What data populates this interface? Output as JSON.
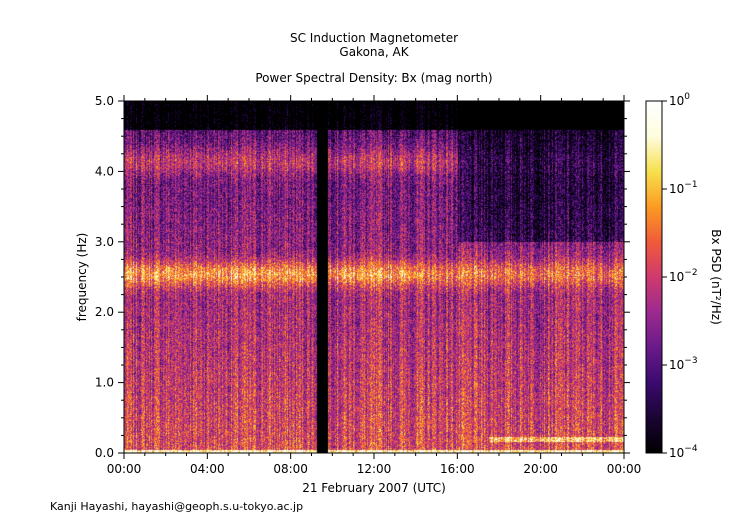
{
  "chart_data": {
    "type": "heatmap",
    "title_lines": [
      "SC Induction Magnetometer",
      "Gakona, AK"
    ],
    "subtitle": "Power Spectral Density: Bx (mag north)",
    "ylabel": "frequency (Hz)",
    "xlabel": "21 February 2007 (UTC)",
    "ylim": [
      0,
      5
    ],
    "y_ticks": [
      "0.0",
      "1.0",
      "2.0",
      "3.0",
      "4.0",
      "5.0"
    ],
    "y_tick_values": [
      0,
      1,
      2,
      3,
      4,
      5
    ],
    "xlim_hours": [
      0,
      24
    ],
    "x_ticks": [
      "00:00",
      "04:00",
      "08:00",
      "12:00",
      "16:00",
      "20:00",
      "00:00"
    ],
    "x_tick_hours": [
      0,
      4,
      8,
      12,
      16,
      20,
      24
    ],
    "colorbar": {
      "label": "Bx PSD (nT²/Hz)",
      "scale": "log",
      "range": [
        0.0001,
        1
      ],
      "tick_exponents": [
        "0",
        "−1",
        "−2",
        "−3",
        "−4"
      ],
      "tick_values": [
        1,
        0.1,
        0.01,
        0.001,
        0.0001
      ],
      "colormap": [
        "#000000",
        "#1a0533",
        "#3b0a6e",
        "#6a1a8a",
        "#9c2a8f",
        "#cf3a6e",
        "#f05a3a",
        "#fb9c22",
        "#f7e04e",
        "#fdfde0",
        "#ffffff"
      ]
    },
    "features": {
      "data_gap_hours": [
        9.25,
        9.75
      ],
      "pc1_band_hz": [
        2.3,
        2.8
      ],
      "upper_band_hz": [
        3.9,
        4.4
      ],
      "low_freq_line_hz": 0.2
    }
  },
  "credit": "Kanji Hayashi, hayashi@geoph.s.u-tokyo.ac.jp"
}
